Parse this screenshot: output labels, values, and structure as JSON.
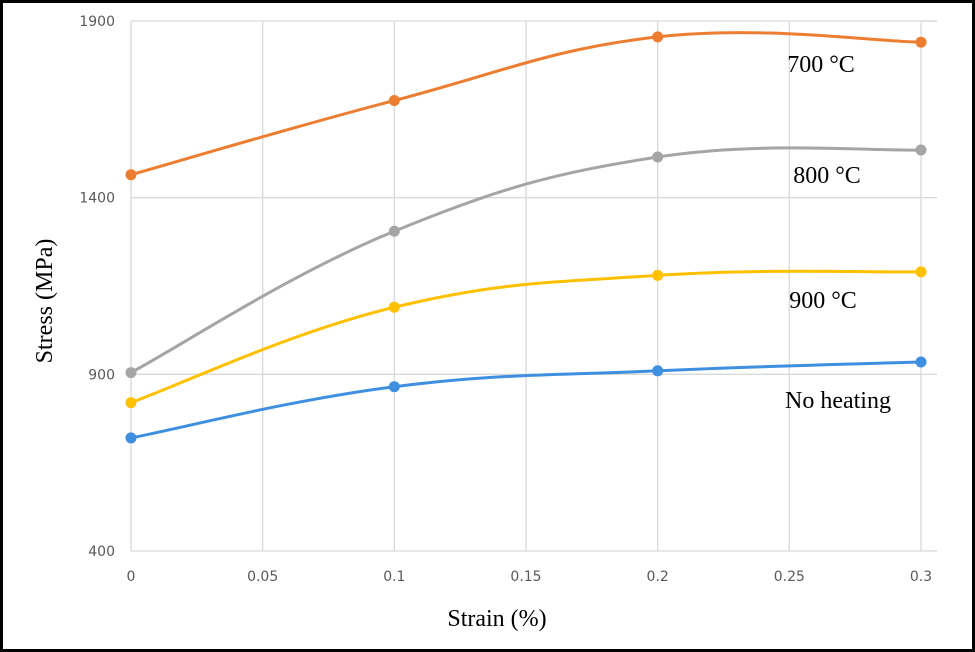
{
  "chart_data": {
    "type": "line",
    "xlabel": "Strain (%)",
    "ylabel": "Stress (MPa)",
    "xlim": [
      0,
      0.3
    ],
    "ylim": [
      400,
      1900
    ],
    "x_ticks": [
      "0",
      "0.05",
      "0.1",
      "0.15",
      "0.2",
      "0.25",
      "0.3"
    ],
    "y_ticks": [
      "400",
      "900",
      "1400",
      "1900"
    ],
    "grid": true,
    "series": [
      {
        "name": "700 °C",
        "color": "#ED7D31",
        "x": [
          0,
          0.1,
          0.2,
          0.3
        ],
        "y": [
          1465,
          1675,
          1855,
          1840
        ]
      },
      {
        "name": "800 °C",
        "color": "#A5A5A5",
        "x": [
          0,
          0.1,
          0.2,
          0.3
        ],
        "y": [
          905,
          1305,
          1515,
          1535
        ]
      },
      {
        "name": "900 °C",
        "color": "#FFC000",
        "x": [
          0,
          0.1,
          0.2,
          0.3
        ],
        "y": [
          820,
          1090,
          1180,
          1190
        ]
      },
      {
        "name": "No heating",
        "color": "#3F8FE0",
        "x": [
          0,
          0.1,
          0.2,
          0.3
        ],
        "y": [
          720,
          865,
          910,
          935
        ]
      }
    ]
  }
}
